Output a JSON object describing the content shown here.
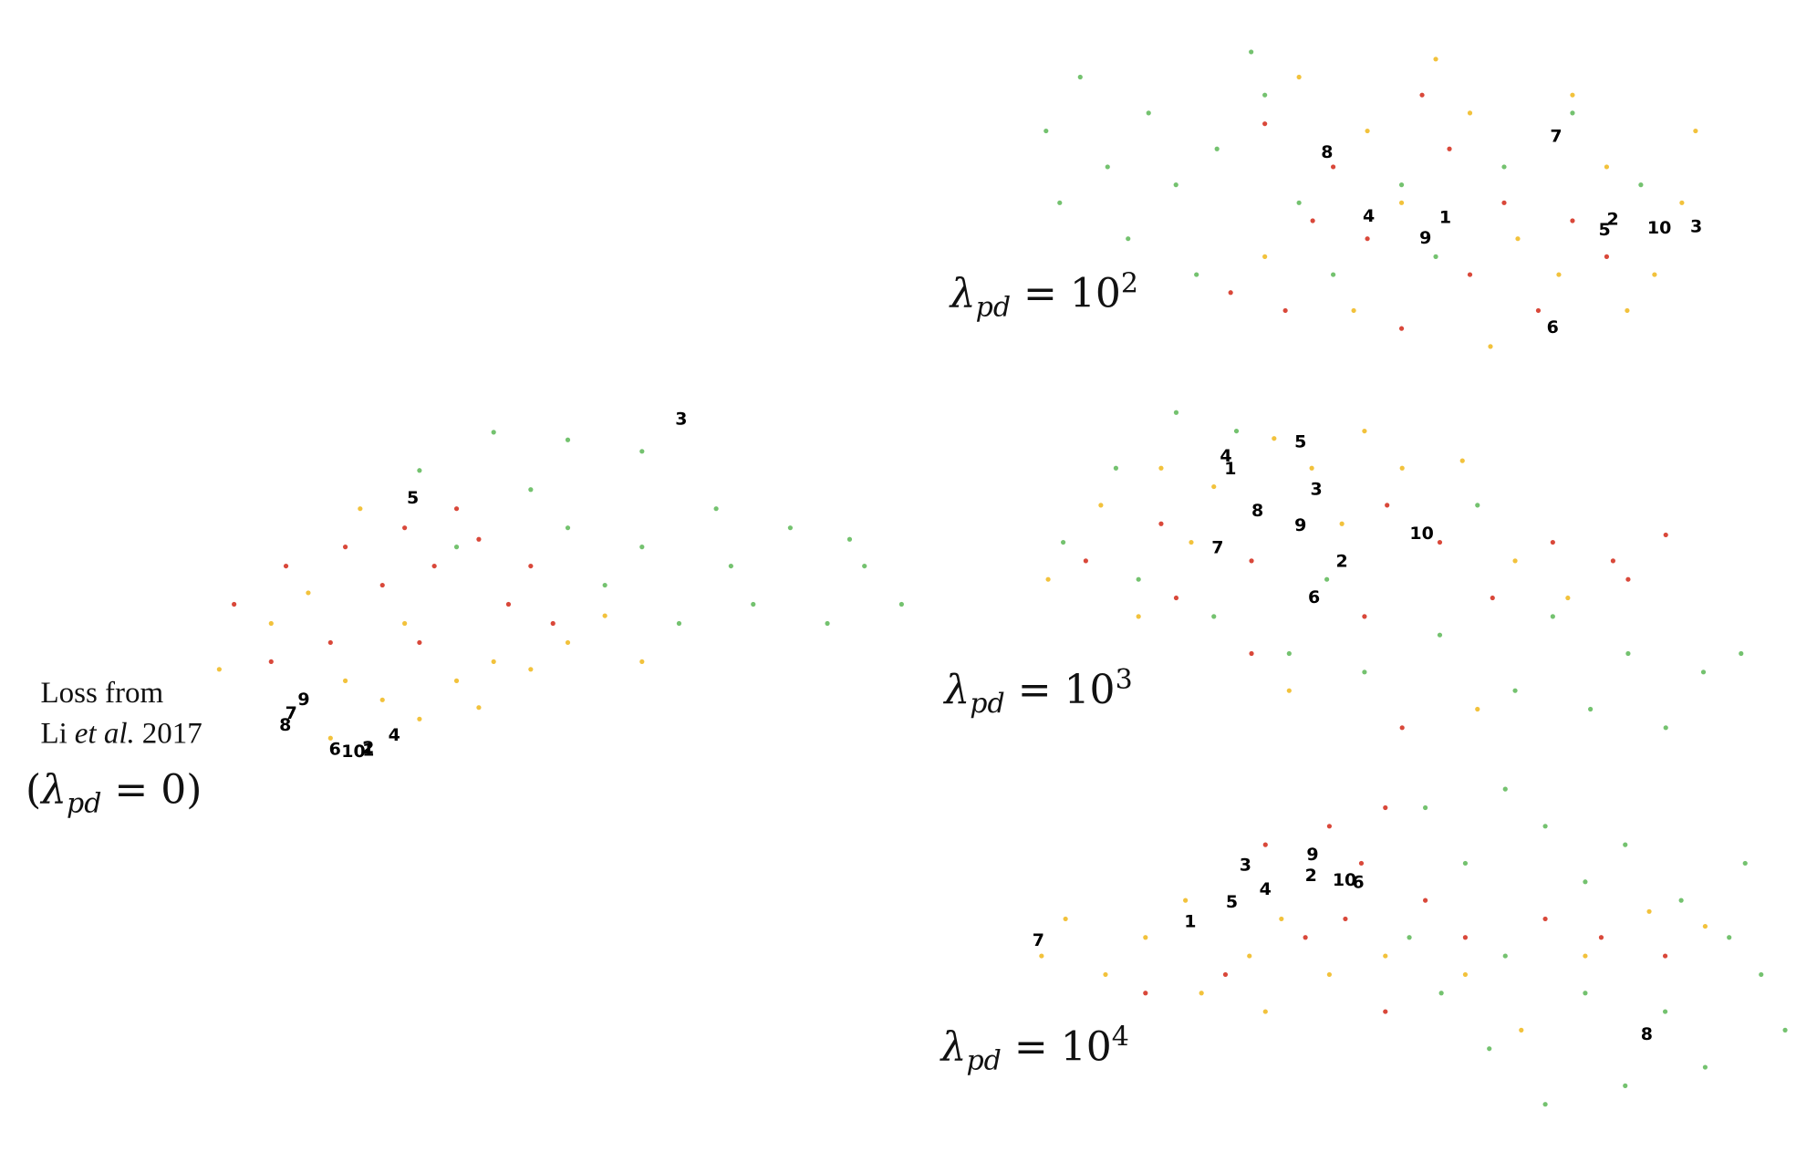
{
  "chart_data": [
    {
      "type": "scatter",
      "caption": {
        "line1": "Loss from",
        "author": "Li",
        "etal": "et al.",
        "year": "2017"
      },
      "title": {
        "open": "(",
        "symbol": "λ",
        "subscript": "pd",
        "relation": "=",
        "base": "0",
        "close": ")"
      },
      "xlim": [
        0,
        100
      ],
      "ylim": [
        0,
        100
      ],
      "series": [
        {
          "color": "#74c26f",
          "x": [
            30,
            40,
            50,
            60,
            45,
            70,
            80,
            90,
            95,
            85,
            75,
            65,
            55,
            60,
            35,
            50,
            88,
            72
          ],
          "y": [
            80,
            90,
            88,
            85,
            75,
            70,
            65,
            55,
            45,
            40,
            45,
            40,
            50,
            60,
            60,
            65,
            62,
            55
          ]
        },
        {
          "color": "#d9483a",
          "x": [
            5,
            12,
            20,
            25,
            32,
            38,
            42,
            30,
            18,
            10,
            48,
            35,
            28,
            45
          ],
          "y": [
            45,
            55,
            60,
            50,
            55,
            62,
            45,
            35,
            35,
            30,
            40,
            70,
            65,
            55
          ]
        },
        {
          "color": "#f2c23c",
          "x": [
            3,
            10,
            15,
            20,
            25,
            30,
            35,
            40,
            45,
            50,
            55,
            28,
            18,
            38,
            60,
            22
          ],
          "y": [
            28,
            40,
            48,
            25,
            20,
            15,
            25,
            30,
            28,
            35,
            42,
            40,
            10,
            18,
            30,
            70
          ]
        }
      ],
      "labels": [
        {
          "text": "1",
          "x": 23.1,
          "y": 6.7
        },
        {
          "text": "2",
          "x": 23.1,
          "y": 7.3
        },
        {
          "text": "3",
          "x": 65.3,
          "y": 93.3
        },
        {
          "text": "4",
          "x": 26.6,
          "y": 10.6
        },
        {
          "text": "5",
          "x": 29.1,
          "y": 72.7
        },
        {
          "text": "6",
          "x": 18.6,
          "y": 7.0
        },
        {
          "text": "7",
          "x": 12.7,
          "y": 16.4
        },
        {
          "text": "8",
          "x": 11.9,
          "y": 13.3
        },
        {
          "text": "9",
          "x": 14.4,
          "y": 20.0
        },
        {
          "text": "10",
          "x": 21.1,
          "y": 6.4
        }
      ]
    },
    {
      "type": "scatter",
      "title": {
        "symbol": "λ",
        "subscript": "pd",
        "relation": "=",
        "base": "10",
        "exponent": "2"
      },
      "xlim": [
        0,
        100
      ],
      "ylim": [
        0,
        100
      ],
      "series": [
        {
          "color": "#74c26f",
          "x": [
            3,
            8,
            12,
            5,
            18,
            22,
            15,
            28,
            35,
            40,
            55,
            60,
            45,
            70,
            80,
            90,
            33,
            25
          ],
          "y": [
            70,
            85,
            60,
            50,
            75,
            55,
            40,
            65,
            80,
            50,
            55,
            35,
            30,
            60,
            75,
            55,
            92,
            30
          ]
        },
        {
          "color": "#d9483a",
          "x": [
            30,
            38,
            45,
            50,
            58,
            65,
            70,
            75,
            80,
            62,
            42,
            35,
            85,
            55
          ],
          "y": [
            25,
            20,
            60,
            40,
            80,
            30,
            50,
            20,
            45,
            65,
            45,
            72,
            35,
            15
          ]
        },
        {
          "color": "#f2c23c",
          "x": [
            40,
            50,
            60,
            65,
            72,
            78,
            85,
            92,
            96,
            88,
            68,
            48,
            55,
            80,
            98,
            35
          ],
          "y": [
            85,
            70,
            90,
            75,
            40,
            30,
            60,
            30,
            50,
            20,
            10,
            20,
            50,
            80,
            70,
            35
          ]
        }
      ],
      "labels": [
        {
          "text": "1",
          "x": 61.4,
          "y": 45.8
        },
        {
          "text": "2",
          "x": 85.9,
          "y": 45.2
        },
        {
          "text": "3",
          "x": 98.1,
          "y": 43.2
        },
        {
          "text": "4",
          "x": 50.2,
          "y": 46.1
        },
        {
          "text": "5",
          "x": 84.7,
          "y": 42.3
        },
        {
          "text": "6",
          "x": 77.1,
          "y": 15.2
        },
        {
          "text": "7",
          "x": 77.6,
          "y": 68.4
        },
        {
          "text": "8",
          "x": 44.1,
          "y": 63.9
        },
        {
          "text": "9",
          "x": 58.5,
          "y": 40.0
        },
        {
          "text": "10",
          "x": 92.7,
          "y": 42.9
        }
      ]
    },
    {
      "type": "scatter",
      "title": {
        "symbol": "λ",
        "subscript": "pd",
        "relation": "=",
        "base": "10",
        "exponent": "3"
      },
      "xlim": [
        0,
        100
      ],
      "ylim": [
        0,
        100
      ],
      "series": [
        {
          "color": "#74c26f",
          "x": [
            5,
            12,
            20,
            28,
            15,
            25,
            35,
            45,
            55,
            65,
            75,
            80,
            85,
            90,
            95,
            70,
            40,
            60
          ],
          "y": [
            60,
            80,
            95,
            90,
            50,
            40,
            30,
            25,
            35,
            20,
            15,
            30,
            10,
            25,
            30,
            40,
            50,
            70
          ]
        },
        {
          "color": "#d9483a",
          "x": [
            8,
            18,
            30,
            48,
            55,
            62,
            70,
            78,
            85,
            80,
            45,
            50,
            30,
            20
          ],
          "y": [
            55,
            65,
            55,
            70,
            60,
            45,
            60,
            55,
            62,
            50,
            40,
            10,
            30,
            45
          ]
        },
        {
          "color": "#f2c23c",
          "x": [
            3,
            10,
            18,
            25,
            33,
            38,
            42,
            50,
            58,
            65,
            72,
            35,
            22,
            60,
            45,
            15
          ],
          "y": [
            50,
            70,
            80,
            75,
            88,
            80,
            65,
            80,
            82,
            55,
            45,
            20,
            60,
            15,
            90,
            40
          ]
        }
      ],
      "labels": [
        {
          "text": "1",
          "x": 27.2,
          "y": 79.7
        },
        {
          "text": "2",
          "x": 42.0,
          "y": 54.7
        },
        {
          "text": "3",
          "x": 38.6,
          "y": 74.1
        },
        {
          "text": "4",
          "x": 26.6,
          "y": 83.1
        },
        {
          "text": "5",
          "x": 36.5,
          "y": 86.9
        },
        {
          "text": "6",
          "x": 38.3,
          "y": 45.0
        },
        {
          "text": "7",
          "x": 25.5,
          "y": 58.4
        },
        {
          "text": "8",
          "x": 30.8,
          "y": 68.4
        },
        {
          "text": "9",
          "x": 36.5,
          "y": 64.4
        },
        {
          "text": "10",
          "x": 52.6,
          "y": 62.2
        }
      ]
    },
    {
      "type": "scatter",
      "title": {
        "symbol": "λ",
        "subscript": "pd",
        "relation": "=",
        "base": "10",
        "exponent": "4"
      },
      "xlim": [
        0,
        100
      ],
      "ylim": [
        0,
        100
      ],
      "series": [
        {
          "color": "#74c26f",
          "x": [
            50,
            55,
            60,
            65,
            70,
            75,
            82,
            88,
            92,
            95,
            85,
            75,
            65,
            58,
            52,
            60,
            70,
            80,
            90,
            48
          ],
          "y": [
            90,
            75,
            95,
            85,
            70,
            80,
            65,
            55,
            45,
            30,
            20,
            15,
            10,
            25,
            40,
            50,
            40,
            35,
            75,
            55
          ]
        },
        {
          "color": "#d9483a",
          "x": [
            30,
            38,
            45,
            42,
            50,
            35,
            25,
            15,
            55,
            65,
            72,
            80,
            45,
            40
          ],
          "y": [
            80,
            85,
            90,
            75,
            65,
            55,
            45,
            40,
            55,
            60,
            55,
            50,
            35,
            60
          ]
        },
        {
          "color": "#f2c23c",
          "x": [
            2,
            5,
            10,
            15,
            20,
            22,
            28,
            32,
            38,
            45,
            55,
            62,
            70,
            78,
            85,
            30
          ],
          "y": [
            50,
            60,
            45,
            55,
            65,
            40,
            50,
            60,
            45,
            50,
            45,
            30,
            50,
            62,
            58,
            35
          ]
        }
      ],
      "labels": [
        {
          "text": "1",
          "x": 20.6,
          "y": 59.1
        },
        {
          "text": "2",
          "x": 35.7,
          "y": 71.6
        },
        {
          "text": "3",
          "x": 27.5,
          "y": 74.4
        },
        {
          "text": "4",
          "x": 30.0,
          "y": 67.8
        },
        {
          "text": "5",
          "x": 25.8,
          "y": 64.4
        },
        {
          "text": "6",
          "x": 41.6,
          "y": 69.7
        },
        {
          "text": "7",
          "x": 1.6,
          "y": 54.1
        },
        {
          "text": "8",
          "x": 77.7,
          "y": 28.8
        },
        {
          "text": "9",
          "x": 35.9,
          "y": 77.2
        },
        {
          "text": "10",
          "x": 39.9,
          "y": 70.3
        }
      ]
    }
  ]
}
